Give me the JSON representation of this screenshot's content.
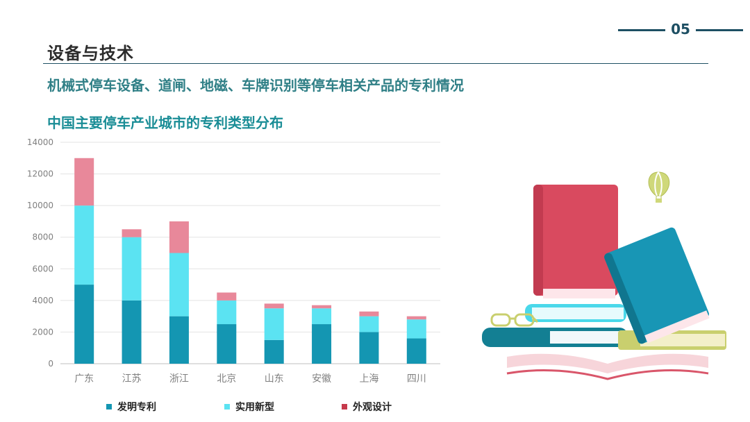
{
  "page_number": "05",
  "section_title": "设备与技术",
  "subtitle": "机械式停车设备、道闸、地磁、车牌识别等停车相关产品的专利情况",
  "chart_data": {
    "type": "bar",
    "stacked": true,
    "title": "中国主要停车产业城市的专利类型分布",
    "categories": [
      "广东",
      "江苏",
      "浙江",
      "北京",
      "山东",
      "安徽",
      "上海",
      "四川"
    ],
    "series": [
      {
        "name": "发明专利",
        "values": [
          5000,
          4000,
          3000,
          2500,
          1500,
          2500,
          2000,
          1600
        ],
        "color": "#1496b2"
      },
      {
        "name": "实用新型",
        "values": [
          5000,
          4000,
          4000,
          1500,
          2000,
          1000,
          1000,
          1200
        ],
        "color": "#5be3f2"
      },
      {
        "name": "外观设计",
        "values": [
          3000,
          500,
          2000,
          500,
          300,
          200,
          300,
          200
        ],
        "color": "#e8889a"
      }
    ],
    "ylim": [
      0,
      14000
    ],
    "yticks": [
      "0",
      "2000",
      "4000",
      "6000",
      "8000",
      "10000",
      "12000",
      "14000"
    ],
    "grid": true,
    "legend_position": "bottom"
  }
}
